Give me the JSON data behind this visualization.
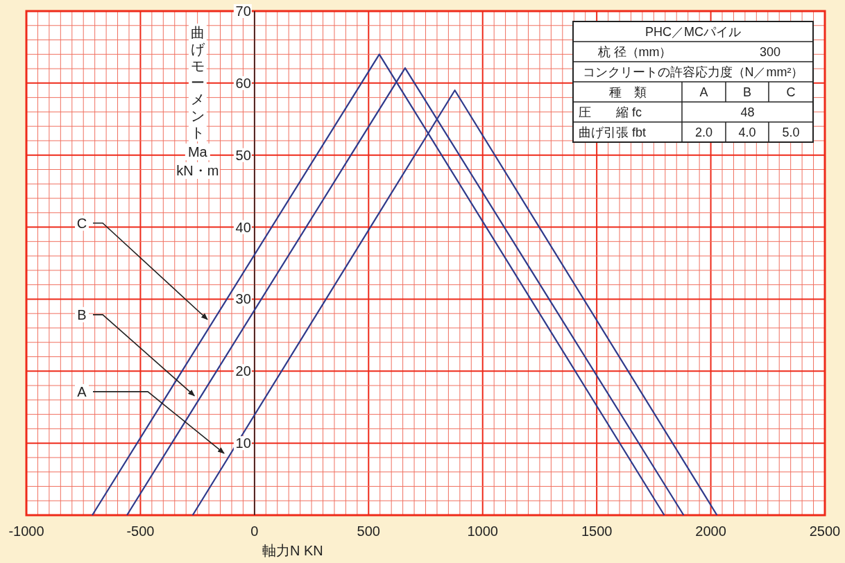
{
  "chart_data": [
    {
      "type": "line",
      "xlabel": "軸力N KN",
      "ylabel": "曲げモーメント Ma kN・m",
      "xlim": [
        -1000,
        2500
      ],
      "xticks": [
        -1000,
        {
          "value": -950,
          "label": null
        },
        {
          "value": -900,
          "label": null
        },
        {
          "value": -850,
          "label": null
        },
        {
          "value": -800,
          "label": null
        },
        {
          "value": -750,
          "label": null
        },
        {
          "value": -700,
          "label": null
        },
        {
          "value": -650,
          "label": null
        },
        {
          "value": -600,
          "label": null
        },
        {
          "value": -550,
          "label": null
        },
        -500,
        {
          "value": -450,
          "label": null
        },
        {
          "value": -400,
          "label": null
        },
        {
          "value": -350,
          "label": null
        },
        {
          "value": -300,
          "label": null
        },
        {
          "value": -250,
          "label": null
        },
        {
          "value": -200,
          "label": null
        },
        {
          "value": -150,
          "label": null
        },
        {
          "value": -100,
          "label": null
        },
        {
          "value": -50,
          "label": null
        },
        0,
        {
          "value": 50,
          "label": null
        },
        {
          "value": 100,
          "label": null
        },
        {
          "value": 150,
          "label": null
        },
        {
          "value": 200,
          "label": null
        },
        {
          "value": 250,
          "label": null
        },
        {
          "value": 300,
          "label": null
        },
        {
          "value": 350,
          "label": null
        },
        {
          "value": 400,
          "label": null
        },
        {
          "value": 450,
          "label": null
        },
        500,
        {
          "value": 550,
          "label": null
        },
        {
          "value": 600,
          "label": null
        },
        {
          "value": 650,
          "label": null
        },
        {
          "value": 700,
          "label": null
        },
        {
          "value": 750,
          "label": null
        },
        {
          "value": 800,
          "label": null
        },
        {
          "value": 850,
          "label": null
        },
        {
          "value": 900,
          "label": null
        },
        {
          "value": 950,
          "label": null
        },
        1000,
        {
          "value": 1050,
          "label": null
        },
        {
          "value": 1100,
          "label": null
        },
        {
          "value": 1150,
          "label": null
        },
        {
          "value": 1200,
          "label": null
        },
        {
          "value": 1250,
          "label": null
        },
        {
          "value": 1300,
          "label": null
        },
        {
          "value": 1350,
          "label": null
        },
        {
          "value": 1400,
          "label": null
        },
        {
          "value": 1450,
          "label": null
        },
        1500,
        {
          "value": 1550,
          "label": null
        },
        {
          "value": 1600,
          "label": null
        },
        {
          "value": 1650,
          "label": null
        },
        {
          "value": 1700,
          "label": null
        },
        {
          "value": 1750,
          "label": null
        },
        {
          "value": 1800,
          "label": null
        },
        {
          "value": 1850,
          "label": null
        },
        {
          "value": 1900,
          "label": null
        },
        {
          "value": 1950,
          "label": null
        },
        2000,
        {
          "value": 2050,
          "label": null
        },
        {
          "value": 2100,
          "label": null
        },
        {
          "value": 2150,
          "label": null
        },
        {
          "value": 2200,
          "label": null
        },
        {
          "value": 2250,
          "label": null
        },
        {
          "value": 2300,
          "label": null
        },
        {
          "value": 2350,
          "label": null
        },
        {
          "value": 2400,
          "label": null
        },
        {
          "value": 2450,
          "label": null
        },
        2500
      ],
      "ylim": [
        0,
        70
      ],
      "yticks": [
        {
          "value": 0,
          "label": null
        },
        {
          "value": 2,
          "label": null
        },
        {
          "value": 4,
          "label": null
        },
        {
          "value": 6,
          "label": null
        },
        {
          "value": 8,
          "label": null
        },
        10,
        {
          "value": 12,
          "label": null
        },
        {
          "value": 14,
          "label": null
        },
        {
          "value": 16,
          "label": null
        },
        {
          "value": 18,
          "label": null
        },
        20,
        {
          "value": 22,
          "label": null
        },
        {
          "value": 24,
          "label": null
        },
        {
          "value": 26,
          "label": null
        },
        {
          "value": 28,
          "label": null
        },
        30,
        {
          "value": 32,
          "label": null
        },
        {
          "value": 34,
          "label": null
        },
        {
          "value": 36,
          "label": null
        },
        {
          "value": 38,
          "label": null
        },
        40,
        {
          "value": 42,
          "label": null
        },
        {
          "value": 44,
          "label": null
        },
        {
          "value": 46,
          "label": null
        },
        {
          "value": 48,
          "label": null
        },
        50,
        {
          "value": 52,
          "label": null
        },
        {
          "value": 54,
          "label": null
        },
        {
          "value": 56,
          "label": null
        },
        {
          "value": 58,
          "label": null
        },
        60,
        {
          "value": 62,
          "label": null
        },
        {
          "value": 64,
          "label": null
        },
        {
          "value": 66,
          "label": null
        },
        {
          "value": 68,
          "label": null
        },
        70
      ],
      "grid": true,
      "marker": "none",
      "line_style": "solid",
      "series": [
        {
          "color": "#2e3a8c",
          "x": [
            -711,
            547,
            1796
          ],
          "values": [
            0,
            64.0,
            0
          ]
        },
        {
          "color": "#2e3a8c",
          "x": [
            -559,
            660,
            1881
          ],
          "values": [
            0,
            62.1,
            0
          ]
        },
        {
          "color": "#2e3a8c",
          "x": [
            -271,
            878,
            2027
          ],
          "values": [
            0,
            59.0,
            0
          ]
        }
      ],
      "annotations": [
        {
          "text": "C",
          "x": -188,
          "y": 26.6
        },
        {
          "text": "B",
          "x": -245,
          "y": 16.0
        },
        {
          "text": "A",
          "x": -115,
          "y": 8.0
        }
      ]
    },
    {
      "type": "other",
      "annotations": [
        "PHC／MCパイル",
        "杭 径（mm）",
        "300",
        "コンクリートの許容応力度（N／mm²）",
        "種　類",
        "A",
        "B",
        "C",
        "圧　　縮 fc",
        "48",
        "曲げ引張 fbt",
        "2.0",
        "4.0",
        "5.0"
      ]
    }
  ]
}
